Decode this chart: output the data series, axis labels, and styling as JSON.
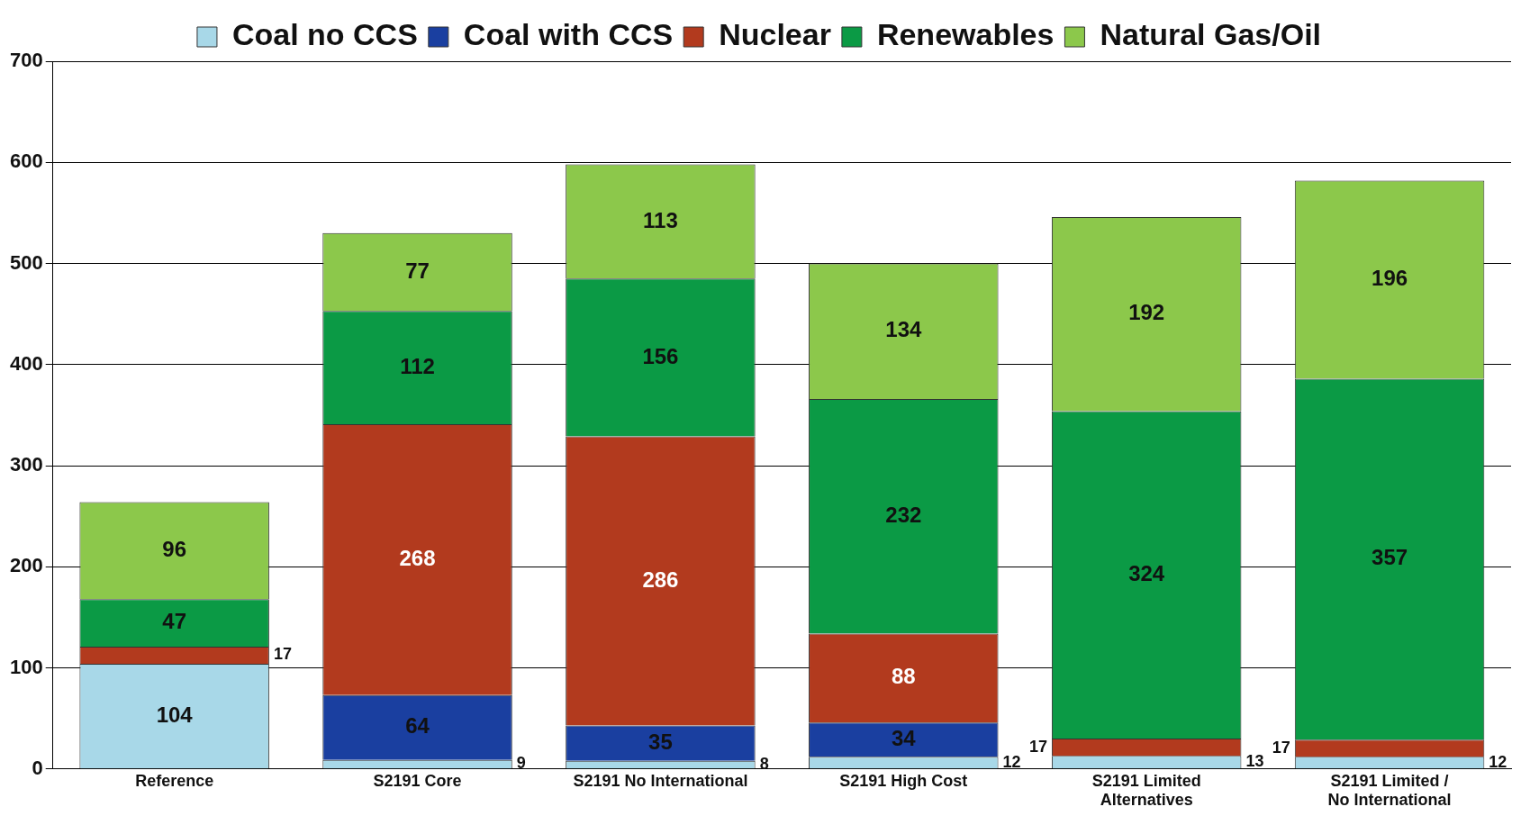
{
  "chart_data": {
    "type": "bar",
    "stacked": true,
    "categories": [
      "Reference",
      "S2191 Core",
      "S2191 No International",
      "S2191 High Cost",
      "S2191 Limited Alternatives",
      "S2191 Limited / No International"
    ],
    "series": [
      {
        "name": "Coal no CCS",
        "color": "#a8d8e8",
        "values": [
          104,
          9,
          8,
          12,
          13,
          12
        ]
      },
      {
        "name": "Coal with CCS",
        "color": "#1a3fa0",
        "values": [
          null,
          64,
          35,
          34,
          null,
          null
        ]
      },
      {
        "name": "Nuclear",
        "color": "#b23a1e",
        "values": [
          17,
          268,
          286,
          88,
          17,
          17
        ]
      },
      {
        "name": "Renewables",
        "color": "#0b9a45",
        "values": [
          47,
          112,
          156,
          232,
          324,
          357
        ]
      },
      {
        "name": "Natural Gas/Oil",
        "color": "#8cc84b",
        "values": [
          96,
          77,
          113,
          134,
          192,
          196
        ]
      }
    ],
    "ylim": [
      0,
      700
    ],
    "yticks": [
      0,
      100,
      200,
      300,
      400,
      500,
      600,
      700
    ],
    "grid": "y",
    "legend": "top",
    "data_labels": true
  }
}
